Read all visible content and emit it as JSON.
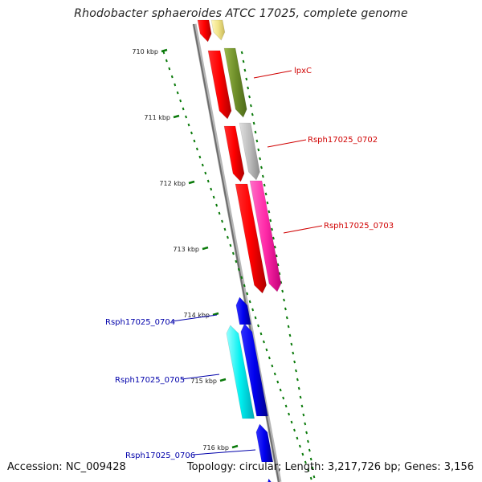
{
  "title": "Rhodobacter sphaeroides ATCC 17025, complete genome",
  "footer": {
    "accession": "Accession: NC_009428",
    "topology": "Topology: circular; Length: 3,217,726 bp; Genes: 3,156"
  },
  "ruler": [
    "710 kbp",
    "711 kbp",
    "712 kbp",
    "713 kbp",
    "714 kbp",
    "715 kbp",
    "716 kbp"
  ],
  "gene_labels": {
    "lpxC": "lpxC",
    "g0702": "Rsph17025_0702",
    "g0703": "Rsph17025_0703",
    "g0704": "Rsph17025_0704",
    "g0705": "Rsph17025_0705",
    "g0706": "Rsph17025_0706"
  },
  "colors": {
    "forward_label": "#d00000",
    "reverse_label": "#0000aa",
    "ruler_tick": "#0a7a0a",
    "backbone": "#888888"
  }
}
